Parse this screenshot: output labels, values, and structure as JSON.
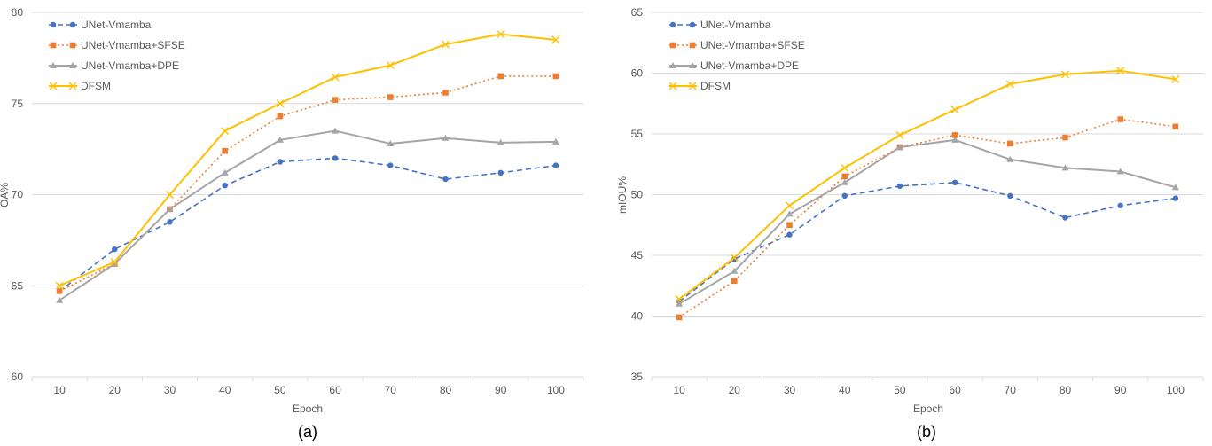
{
  "chart_data": [
    {
      "type": "line",
      "caption": "(a)",
      "xlabel": "Epoch",
      "ylabel": "OA%",
      "x": [
        10,
        20,
        30,
        40,
        50,
        60,
        70,
        80,
        90,
        100
      ],
      "ylim": [
        60,
        80
      ],
      "yticks": [
        60,
        65,
        70,
        75,
        80
      ],
      "grid": true,
      "legend": "top-left",
      "series": [
        {
          "name": "UNet-Vmamba",
          "color": "#4472C4",
          "dash": "dashed",
          "marker": "circle",
          "values": [
            64.7,
            67.0,
            68.5,
            70.5,
            71.8,
            72.0,
            71.6,
            70.85,
            71.2,
            71.6
          ]
        },
        {
          "name": "UNet-Vmamba+SFSE",
          "color": "#ED7D31",
          "dash": "dotted",
          "marker": "square",
          "values": [
            64.7,
            66.2,
            69.2,
            72.4,
            74.3,
            75.2,
            75.35,
            75.6,
            76.5,
            76.5
          ]
        },
        {
          "name": "UNet-Vmamba+DPE",
          "color": "#A5A5A5",
          "dash": "solid",
          "marker": "triangle",
          "values": [
            64.2,
            66.2,
            69.2,
            71.2,
            73.0,
            73.5,
            72.8,
            73.1,
            72.85,
            72.9
          ]
        },
        {
          "name": "DFSM",
          "color": "#FFC000",
          "dash": "solid",
          "marker": "x",
          "values": [
            65.0,
            66.3,
            70.0,
            73.5,
            75.0,
            76.45,
            77.1,
            78.25,
            78.8,
            78.5
          ]
        }
      ]
    },
    {
      "type": "line",
      "caption": "(b)",
      "xlabel": "Epoch",
      "ylabel": "mIOU%",
      "x": [
        10,
        20,
        30,
        40,
        50,
        60,
        70,
        80,
        90,
        100
      ],
      "ylim": [
        35,
        65
      ],
      "yticks": [
        35,
        40,
        45,
        50,
        55,
        60,
        65
      ],
      "grid": true,
      "legend": "top-left",
      "series": [
        {
          "name": "UNet-Vmamba",
          "color": "#4472C4",
          "dash": "dashed",
          "marker": "circle",
          "values": [
            41.2,
            44.7,
            46.7,
            49.9,
            50.7,
            51.0,
            49.9,
            48.1,
            49.1,
            49.7
          ]
        },
        {
          "name": "UNet-Vmamba+SFSE",
          "color": "#ED7D31",
          "dash": "dotted",
          "marker": "square",
          "values": [
            39.9,
            42.9,
            47.5,
            51.5,
            53.9,
            54.9,
            54.2,
            54.7,
            56.2,
            55.6
          ]
        },
        {
          "name": "UNet-Vmamba+DPE",
          "color": "#A5A5A5",
          "dash": "solid",
          "marker": "triangle",
          "values": [
            41.0,
            43.7,
            48.4,
            51.0,
            53.9,
            54.5,
            52.9,
            52.2,
            51.9,
            50.6
          ]
        },
        {
          "name": "DFSM",
          "color": "#FFC000",
          "dash": "solid",
          "marker": "x",
          "values": [
            41.4,
            44.8,
            49.1,
            52.2,
            54.9,
            57.0,
            59.1,
            59.9,
            60.2,
            59.5
          ]
        }
      ]
    }
  ]
}
